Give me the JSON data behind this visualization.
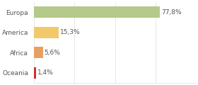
{
  "categories": [
    "Europa",
    "America",
    "Africa",
    "Oceania"
  ],
  "values": [
    77.8,
    15.3,
    5.6,
    1.4
  ],
  "labels": [
    "77,8%",
    "15,3%",
    "5,6%",
    "1,4%"
  ],
  "bar_colors": [
    "#b5c98a",
    "#f2c96a",
    "#e8a060",
    "#d03030"
  ],
  "background_color": "#ffffff",
  "plot_bg_color": "#ffffff",
  "xlim": [
    0,
    100
  ],
  "label_fontsize": 6.5,
  "category_fontsize": 6.5,
  "grid_color": "#dddddd",
  "text_color": "#555555"
}
